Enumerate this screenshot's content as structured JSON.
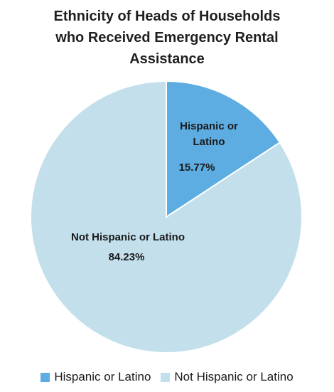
{
  "chart_data": {
    "type": "pie",
    "title_lines": [
      "Ethnicity of Heads of Households",
      "who Received Emergency Rental",
      "Assistance"
    ],
    "slices": [
      {
        "label_lines": [
          "Hispanic or",
          "Latino"
        ],
        "value_label": "15.77%",
        "value": 15.77,
        "color": "#5dade2"
      },
      {
        "label_lines": [
          "Not Hispanic or Latino"
        ],
        "value_label": "84.23%",
        "value": 84.23,
        "color": "#c2dfeb"
      }
    ],
    "legend": {
      "placement": "bottom",
      "entries": [
        "Hispanic or Latino",
        "Not Hispanic or Latino"
      ]
    }
  }
}
